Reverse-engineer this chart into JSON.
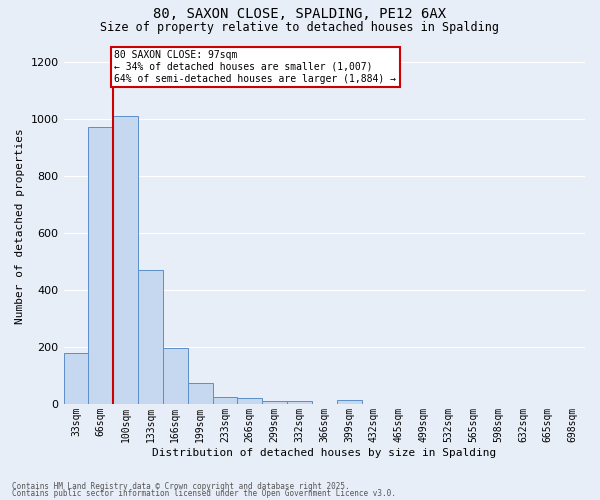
{
  "title_line1": "80, SAXON CLOSE, SPALDING, PE12 6AX",
  "title_line2": "Size of property relative to detached houses in Spalding",
  "xlabel": "Distribution of detached houses by size in Spalding",
  "ylabel": "Number of detached properties",
  "footer_line1": "Contains HM Land Registry data © Crown copyright and database right 2025.",
  "footer_line2": "Contains public sector information licensed under the Open Government Licence v3.0.",
  "annotation_line1": "80 SAXON CLOSE: 97sqm",
  "annotation_line2": "← 34% of detached houses are smaller (1,007)",
  "annotation_line3": "64% of semi-detached houses are larger (1,884) →",
  "bar_labels": [
    "33sqm",
    "66sqm",
    "100sqm",
    "133sqm",
    "166sqm",
    "199sqm",
    "233sqm",
    "266sqm",
    "299sqm",
    "332sqm",
    "366sqm",
    "399sqm",
    "432sqm",
    "465sqm",
    "499sqm",
    "532sqm",
    "565sqm",
    "598sqm",
    "632sqm",
    "665sqm",
    "698sqm"
  ],
  "bar_values": [
    180,
    970,
    1010,
    470,
    195,
    75,
    25,
    20,
    10,
    10,
    0,
    15,
    0,
    0,
    0,
    0,
    0,
    0,
    0,
    0,
    0
  ],
  "bar_color": "#c5d8f0",
  "bar_edge_color": "#5b8fc9",
  "red_line_x": 1.5,
  "red_line_color": "#cc0000",
  "ylim": [
    0,
    1250
  ],
  "yticks": [
    0,
    200,
    400,
    600,
    800,
    1000,
    1200
  ],
  "background_color": "#e8eef8",
  "grid_color": "#ffffff",
  "annotation_box_edge_color": "#cc0000",
  "annotation_fill_color": "#ffffff",
  "title_fontsize": 10,
  "subtitle_fontsize": 8.5,
  "ylabel_fontsize": 8,
  "xlabel_fontsize": 8,
  "tick_fontsize": 7,
  "annotation_fontsize": 7,
  "footer_fontsize": 5.5
}
